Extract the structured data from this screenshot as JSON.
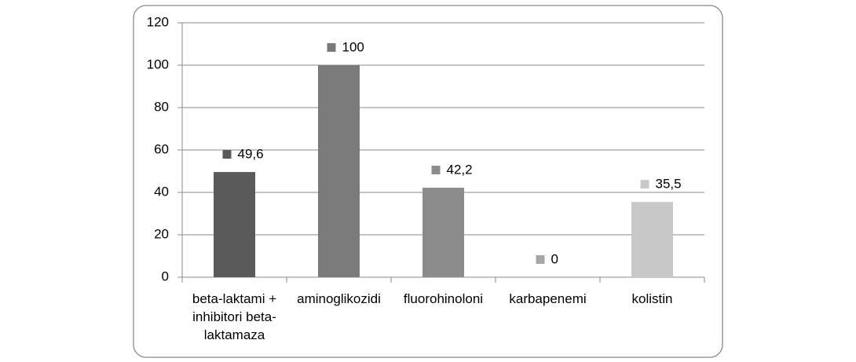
{
  "chart_data": {
    "type": "bar",
    "categories": [
      "beta-laktami + inhibitori beta-laktamaza",
      "aminoglikozidi",
      "fluorohinoloni",
      "karbapenemi",
      "kolistin"
    ],
    "values": [
      49.6,
      100,
      42.2,
      0,
      35.5
    ],
    "value_labels": [
      "49,6",
      "100",
      "42,2",
      "0",
      "35,5"
    ],
    "colors": [
      "#5a5a5a",
      "#7a7a7a",
      "#8c8c8c",
      "#a6a6a6",
      "#c8c8c8"
    ],
    "ylim": [
      0,
      120
    ],
    "yticks": [
      0,
      20,
      40,
      60,
      80,
      100,
      120
    ],
    "grid": true
  }
}
